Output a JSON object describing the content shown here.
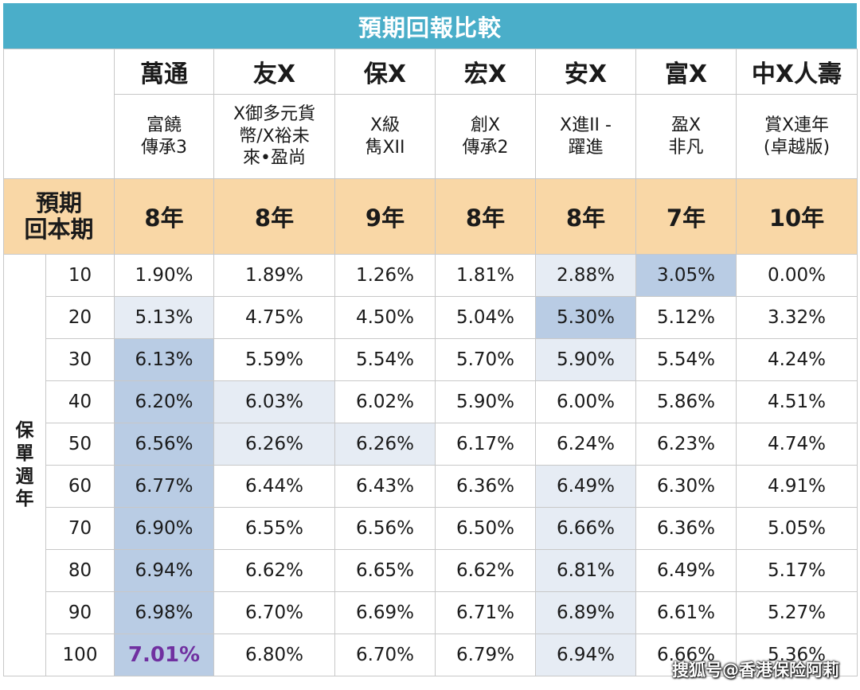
{
  "title": "預期回報比較",
  "companies": [
    {
      "brand": "萬通",
      "plan": "富饒\n傳承3",
      "period": "8年"
    },
    {
      "brand": "友X",
      "plan": "X御多元貨\n幣/X裕未\n來•盈尚",
      "period": "8年"
    },
    {
      "brand": "保X",
      "plan": "X級\n雋XII",
      "period": "9年"
    },
    {
      "brand": "宏X",
      "plan": "創X\n傳承2",
      "period": "8年"
    },
    {
      "brand": "安X",
      "plan": "X進II -\n躍進",
      "period": "8年"
    },
    {
      "brand": "富X",
      "plan": "盈X\n非凡",
      "period": "7年"
    },
    {
      "brand": "中X人壽",
      "plan": "賞X連年\n(卓越版)",
      "period": "10年"
    }
  ],
  "period_label": "預期\n回本期",
  "side_label": "保\n單\n週\n年",
  "rows": [
    {
      "year": "10",
      "values": [
        "1.90%",
        "1.89%",
        "1.26%",
        "1.81%",
        "2.88%",
        "3.05%",
        "0.00%"
      ]
    },
    {
      "year": "20",
      "values": [
        "5.13%",
        "4.75%",
        "4.50%",
        "5.04%",
        "5.30%",
        "5.12%",
        "3.32%"
      ]
    },
    {
      "year": "30",
      "values": [
        "6.13%",
        "5.59%",
        "5.54%",
        "5.70%",
        "5.90%",
        "5.54%",
        "4.24%"
      ]
    },
    {
      "year": "40",
      "values": [
        "6.20%",
        "6.03%",
        "6.02%",
        "5.90%",
        "6.00%",
        "5.86%",
        "4.51%"
      ]
    },
    {
      "year": "50",
      "values": [
        "6.56%",
        "6.26%",
        "6.26%",
        "6.17%",
        "6.24%",
        "6.23%",
        "4.74%"
      ]
    },
    {
      "year": "60",
      "values": [
        "6.77%",
        "6.44%",
        "6.43%",
        "6.36%",
        "6.49%",
        "6.30%",
        "4.91%"
      ]
    },
    {
      "year": "70",
      "values": [
        "6.90%",
        "6.55%",
        "6.56%",
        "6.50%",
        "6.66%",
        "6.36%",
        "5.05%"
      ]
    },
    {
      "year": "80",
      "values": [
        "6.94%",
        "6.62%",
        "6.65%",
        "6.62%",
        "6.81%",
        "6.49%",
        "5.17%"
      ]
    },
    {
      "year": "90",
      "values": [
        "6.98%",
        "6.70%",
        "6.69%",
        "6.71%",
        "6.89%",
        "6.61%",
        "5.27%"
      ]
    },
    {
      "year": "100",
      "values": [
        "7.01%",
        "6.80%",
        "6.70%",
        "6.79%",
        "6.94%",
        "6.66%",
        "5.36%"
      ]
    }
  ],
  "highlights": {
    "strong": [
      [
        0,
        5
      ],
      [
        1,
        4
      ],
      [
        2,
        0
      ],
      [
        3,
        0
      ],
      [
        4,
        0
      ],
      [
        5,
        0
      ],
      [
        6,
        0
      ],
      [
        7,
        0
      ],
      [
        8,
        0
      ],
      [
        9,
        0
      ]
    ],
    "light": [
      [
        0,
        4
      ],
      [
        1,
        0
      ],
      [
        2,
        4
      ],
      [
        3,
        1
      ],
      [
        4,
        1
      ],
      [
        4,
        2
      ],
      [
        5,
        4
      ],
      [
        6,
        4
      ],
      [
        7,
        4
      ],
      [
        8,
        4
      ],
      [
        9,
        4
      ]
    ],
    "best": [
      9,
      0
    ]
  },
  "colors": {
    "title_bg": "#4aaec9",
    "period_bg": "#f9d7a6",
    "strong": "#b9cce4",
    "light": "#e6ecf4",
    "best_text": "#7030a0"
  },
  "watermark": "搜狐号@香港保险阿莉"
}
